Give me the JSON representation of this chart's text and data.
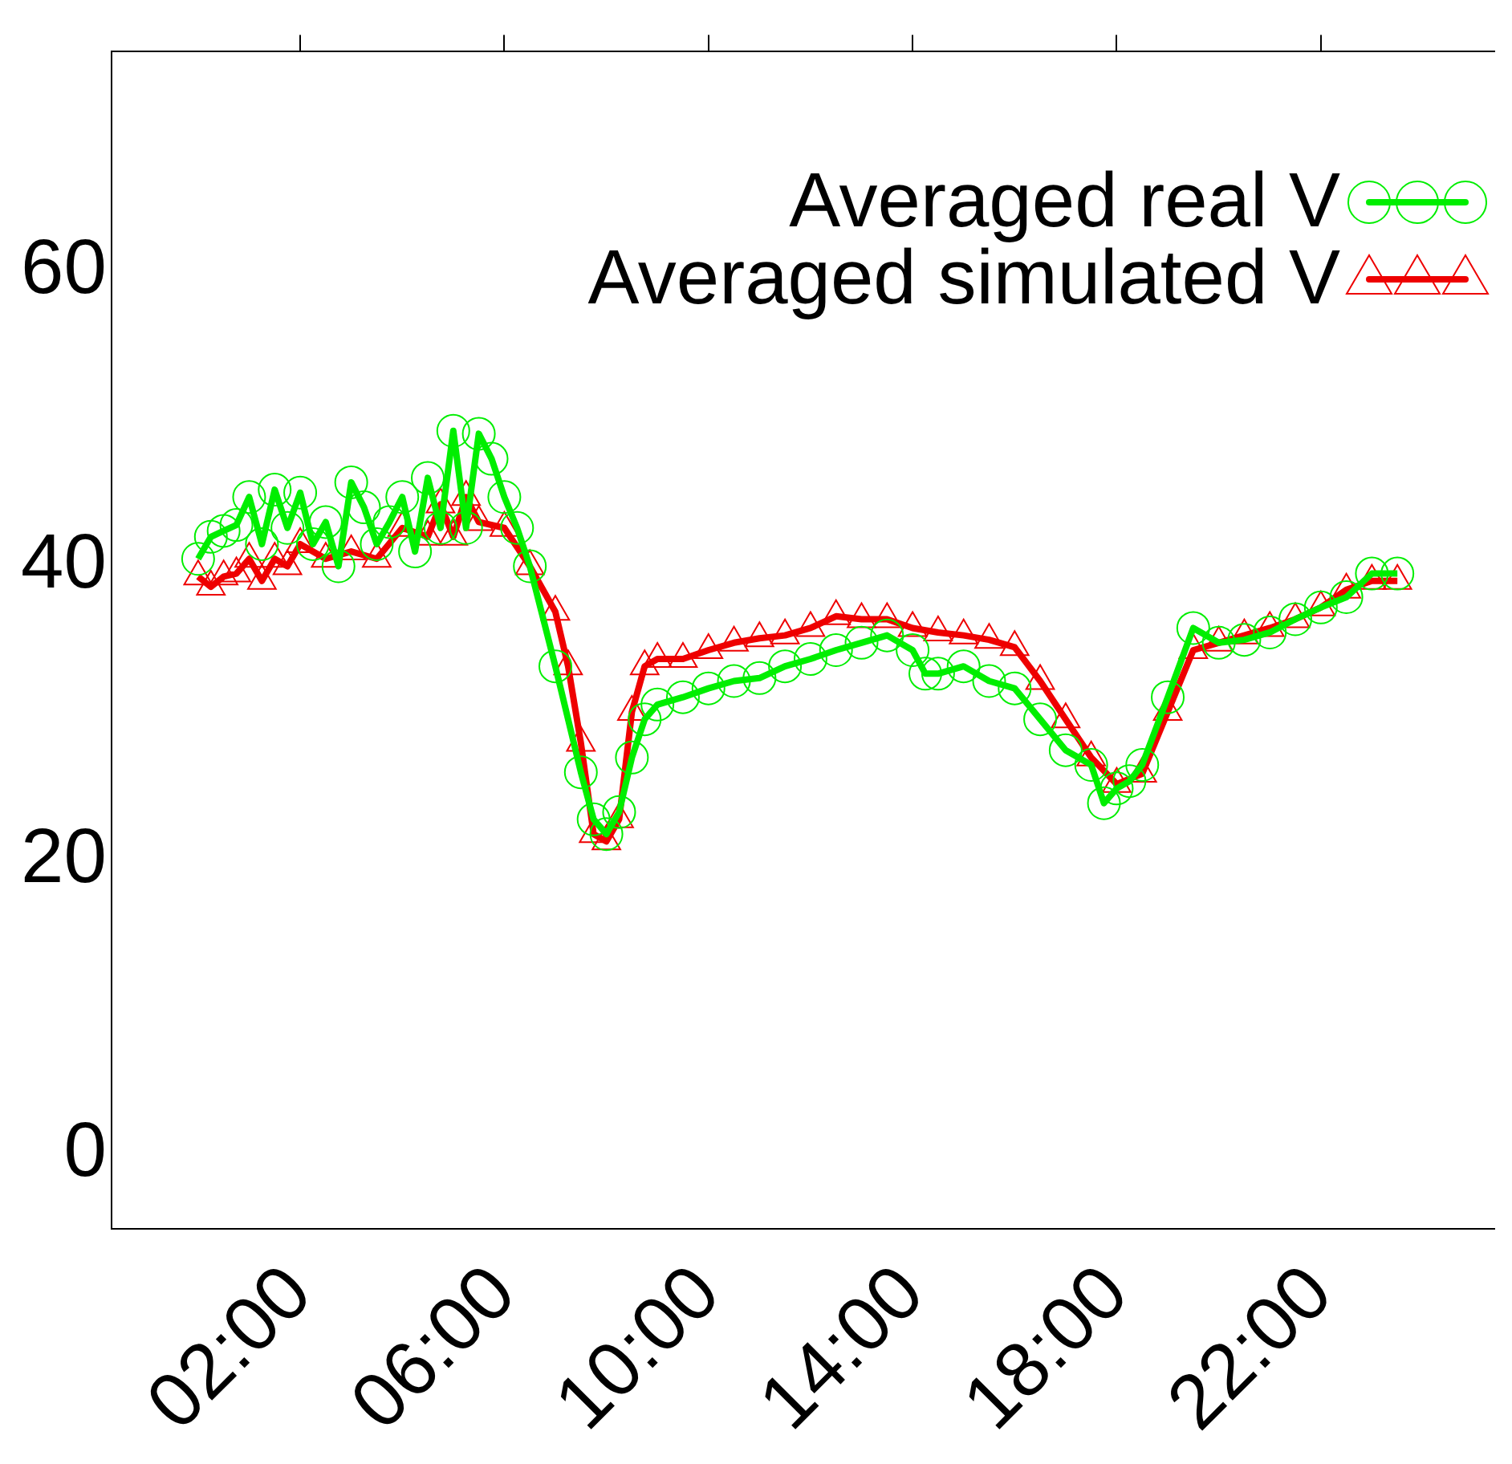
{
  "chart_data": {
    "type": "line",
    "x": [
      0,
      0.25,
      0.5,
      0.75,
      1,
      1.25,
      1.5,
      1.75,
      2,
      2.25,
      2.5,
      2.75,
      3,
      3.25,
      3.5,
      3.75,
      4,
      4.25,
      4.5,
      4.75,
      5,
      5.25,
      5.5,
      5.75,
      6,
      6.25,
      6.5,
      7,
      7.5,
      7.75,
      8,
      8.25,
      8.5,
      8.75,
      9,
      9.5,
      10,
      10.5,
      11,
      11.5,
      12,
      12.5,
      13,
      13.5,
      14,
      14.25,
      14.5,
      15,
      15.5,
      16,
      16.5,
      17,
      17.5,
      17.75,
      18,
      18.25,
      18.5,
      19,
      19.5,
      20,
      20.5,
      21,
      21.5,
      22,
      22.5,
      23,
      23.5
    ],
    "series": [
      {
        "name": "Averaged real V",
        "color": "#00ee00",
        "marker": "circle",
        "values": [
          40.5,
          42,
          42.4,
          42.8,
          44.7,
          41.5,
          45.2,
          42.6,
          45,
          41.5,
          43,
          40,
          45.7,
          44,
          41.5,
          43,
          44.7,
          41,
          46,
          42.6,
          49.2,
          42.6,
          49,
          47.3,
          44.7,
          42.6,
          40,
          33.2,
          26,
          22.8,
          21.8,
          23.3,
          27,
          29.6,
          30.6,
          31.1,
          31.7,
          32.2,
          32.4,
          33.2,
          33.7,
          34.3,
          34.8,
          35.3,
          34.3,
          32.7,
          32.7,
          33.2,
          32.2,
          31.7,
          29.6,
          27.5,
          26.5,
          23.9,
          24.9,
          25.4,
          26.5,
          31.1,
          35.8,
          34.8,
          35,
          35.5,
          36.4,
          37.2,
          37.9,
          39.5,
          39.5
        ]
      },
      {
        "name": "Averaged simulated V",
        "color": "#ee0000",
        "marker": "triangle",
        "x": [
          0,
          0.25,
          0.5,
          0.75,
          1,
          1.25,
          1.5,
          1.75,
          2,
          2.5,
          3,
          3.5,
          4,
          4.5,
          4.75,
          5,
          5.25,
          5.5,
          6,
          6.5,
          7,
          7.25,
          7.5,
          7.75,
          8,
          8.25,
          8.5,
          8.75,
          9,
          9.5,
          10,
          10.5,
          11,
          11.5,
          12,
          12.5,
          13,
          13.5,
          14,
          14.5,
          15,
          15.5,
          16,
          16.5,
          17,
          17.5,
          18,
          18.5,
          19,
          19.5,
          20,
          20.5,
          21,
          21.5,
          22,
          22.5,
          23,
          23.5
        ],
        "values": [
          39.3,
          38.6,
          39.3,
          39.5,
          40.5,
          39,
          40.5,
          40,
          41.5,
          40.5,
          41,
          40.5,
          42.6,
          42,
          44.2,
          42,
          44.7,
          43,
          42.6,
          40,
          36.9,
          33.2,
          28,
          21.8,
          21.3,
          22.8,
          30.1,
          33.2,
          33.7,
          33.7,
          34.3,
          34.8,
          35.1,
          35.3,
          35.8,
          36.6,
          36.4,
          36.4,
          35.8,
          35.5,
          35.3,
          35,
          34.5,
          32.2,
          29.6,
          27,
          25.2,
          25.9,
          30.1,
          34.3,
          34.8,
          35.3,
          35.8,
          36.4,
          37.2,
          38.4,
          39,
          39
        ]
      }
    ],
    "xlim": [
      -1.7,
      25.4
    ],
    "xticks": [
      {
        "value": 2,
        "label": "02:00"
      },
      {
        "value": 6,
        "label": "06:00"
      },
      {
        "value": 10,
        "label": "10:00"
      },
      {
        "value": 14,
        "label": "14:00"
      },
      {
        "value": 18,
        "label": "18:00"
      },
      {
        "value": 22,
        "label": "22:00"
      }
    ],
    "ylim": [
      -5,
      75
    ],
    "yticks": [
      0,
      20,
      40,
      60
    ],
    "grid": false,
    "legend": "top right",
    "line_style": "solid"
  }
}
